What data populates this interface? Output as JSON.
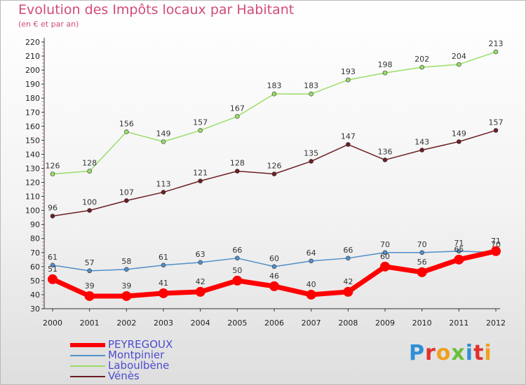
{
  "title": "Evolution des Impôts locaux par Habitant",
  "subtitle": "(en € et par an)",
  "logo": "Proxiti",
  "chart_data": {
    "type": "line",
    "x": [
      "2000",
      "2001",
      "2002",
      "2003",
      "2004",
      "2005",
      "2006",
      "2007",
      "2008",
      "2009",
      "2010",
      "2011",
      "2012"
    ],
    "ylim": [
      30,
      220
    ],
    "yticks": [
      30,
      40,
      50,
      60,
      70,
      80,
      90,
      100,
      110,
      120,
      130,
      140,
      150,
      160,
      170,
      180,
      190,
      200,
      210,
      220
    ],
    "grid": false,
    "legend_position": "bottom-left",
    "series": [
      {
        "name": "PEYREGOUX",
        "color": "#ff0000",
        "values": [
          51,
          39,
          39,
          41,
          42,
          50,
          46,
          40,
          42,
          60,
          56,
          65,
          71
        ],
        "labels": [
          "51",
          "39",
          "39",
          "41",
          "42",
          "50",
          "46",
          "40",
          "42",
          "60",
          "56",
          "65",
          "71"
        ]
      },
      {
        "name": "Montpinier",
        "color": "#4f8fc9",
        "values": [
          61,
          57,
          58,
          61,
          63,
          66,
          60,
          64,
          66,
          70,
          70,
          71,
          70
        ],
        "labels": [
          "61",
          "57",
          "58",
          "61",
          "63",
          "66",
          "60",
          "64",
          "66",
          "70",
          "70",
          "71",
          "70"
        ]
      },
      {
        "name": "Laboulbène",
        "color": "#99dd66",
        "values": [
          126,
          128,
          156,
          149,
          157,
          167,
          183,
          183,
          193,
          198,
          202,
          204,
          213
        ],
        "labels": [
          "126",
          "128",
          "156",
          "149",
          "157",
          "167",
          "183",
          "183",
          "193",
          "198",
          "202",
          "204",
          "213"
        ]
      },
      {
        "name": "Vénès",
        "color": "#6b1f23",
        "values": [
          96,
          100,
          107,
          113,
          121,
          128,
          126,
          135,
          147,
          136,
          143,
          149,
          157
        ],
        "labels": [
          "96",
          "100",
          "107",
          "113",
          "121",
          "128",
          "126",
          "135",
          "147",
          "136",
          "143",
          "149",
          "157"
        ]
      }
    ]
  }
}
